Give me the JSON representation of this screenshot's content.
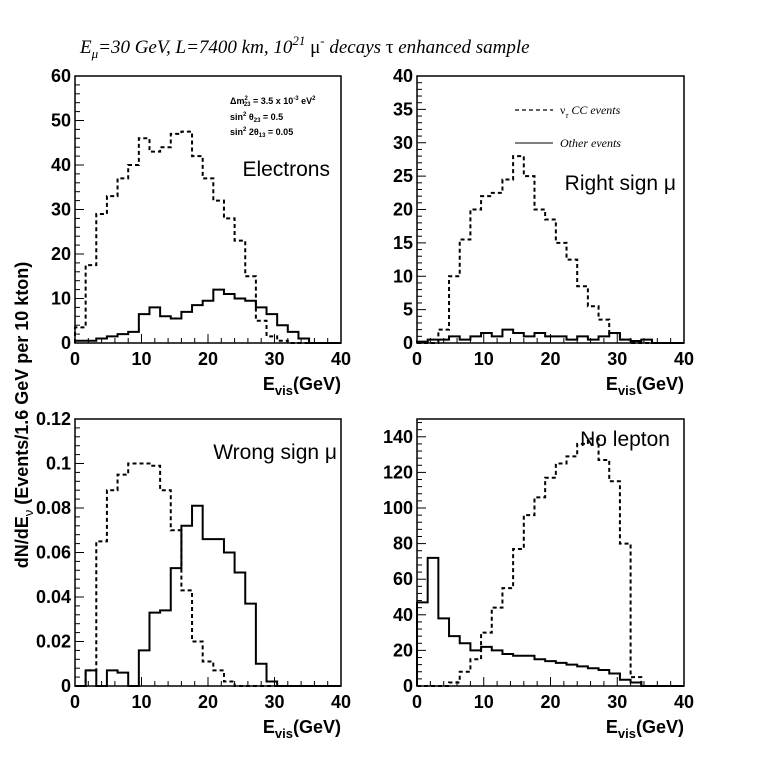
{
  "figure": {
    "title": {
      "e": "E",
      "mu_sub": "μ",
      "mid": "=30 GeV, L=7400 km, 10",
      "sup21": "21",
      "mu_glyph": " μ",
      "minus": "-",
      "decays": " decays ",
      "tau": "τ",
      "rest": " enhanced sample"
    },
    "ylabel": {
      "main": "dN/dE",
      "sub": "ν",
      "rest": " (Events/1.6 GeV per 10 kton)"
    },
    "legend": {
      "nu": "ν",
      "tau_sub": "τ",
      "cc": " CC events",
      "other": "Other events"
    },
    "params": {
      "dm": "Δm",
      "dm_sup": "2",
      "dm_sub": "23",
      "dm_rest": " = 3.5 x 10",
      "dm_exp": "-3",
      "dm_unit": " eV",
      "dm_unit_sup": "2",
      "sin1": "sin",
      "sin1_sup": "2",
      "sin1_theta": " θ",
      "sin1_sub": "23",
      "sin1_rest": " = 0.5",
      "sin2": "sin",
      "sin2_sup": "2",
      "sin2_theta": " 2θ",
      "sin2_sub": "13",
      "sin2_rest": " = 0.05"
    }
  },
  "chart_data": [
    {
      "type": "bar",
      "title": "Electrons",
      "xlabel_main": "E",
      "xlabel_sub": "vis",
      "xlabel_rest": "(GeV)",
      "xlim": [
        0,
        40
      ],
      "ylim": [
        0,
        60
      ],
      "xticks": [
        0,
        10,
        20,
        30,
        40
      ],
      "yticks": [
        0,
        10,
        20,
        30,
        40,
        50,
        60
      ],
      "bin_width": 1.6,
      "series": [
        {
          "name": "ντ CC events",
          "style": "dashed",
          "values": [
            3.5,
            17.5,
            29,
            33,
            37,
            40,
            46,
            43,
            44,
            47,
            47.5,
            42,
            37,
            32,
            28,
            23,
            15,
            5,
            1.5,
            0.5,
            0,
            0,
            0,
            0,
            0
          ]
        },
        {
          "name": "Other events",
          "style": "solid",
          "values": [
            0.5,
            0.5,
            1,
            1.5,
            2,
            2.5,
            6.5,
            8,
            6,
            5.5,
            7,
            8.5,
            9.5,
            12,
            11,
            10,
            9.5,
            8,
            6.5,
            4,
            2.5,
            1,
            0,
            0,
            0
          ]
        }
      ]
    },
    {
      "type": "bar",
      "title": "Right sign μ",
      "xlabel_main": "E",
      "xlabel_sub": "vis",
      "xlabel_rest": "(GeV)",
      "xlim": [
        0,
        40
      ],
      "ylim": [
        0,
        40
      ],
      "xticks": [
        0,
        10,
        20,
        30,
        40
      ],
      "yticks": [
        0,
        5,
        10,
        15,
        20,
        25,
        30,
        35,
        40
      ],
      "bin_width": 1.6,
      "series": [
        {
          "name": "ντ CC events",
          "style": "dashed",
          "values": [
            0,
            0,
            2,
            10,
            15.5,
            20,
            22,
            22.5,
            24.5,
            28,
            25,
            20,
            18.5,
            15,
            12.5,
            8.5,
            5.5,
            3.5,
            1.5,
            0.5,
            0,
            0,
            0,
            0,
            0
          ]
        },
        {
          "name": "Other events",
          "style": "solid",
          "values": [
            0.2,
            0.5,
            0.5,
            1,
            0.5,
            1,
            1.5,
            1,
            2,
            1.5,
            1,
            1.5,
            1,
            1,
            0.5,
            1,
            0.5,
            1,
            1.5,
            0.5,
            0.3,
            0.5,
            0,
            0,
            0
          ]
        }
      ]
    },
    {
      "type": "bar",
      "title": "Wrong sign μ",
      "xlabel_main": "E",
      "xlabel_sub": "vis",
      "xlabel_rest": "(GeV)",
      "xlim": [
        0,
        40
      ],
      "ylim": [
        0,
        0.12
      ],
      "xticks": [
        0,
        10,
        20,
        30,
        40
      ],
      "yticks": [
        0,
        0.02,
        0.04,
        0.06,
        0.08,
        0.1,
        0.12
      ],
      "bin_width": 1.6,
      "series": [
        {
          "name": "ντ CC events",
          "style": "dashed",
          "values": [
            0,
            0.007,
            0.065,
            0.088,
            0.095,
            0.1,
            0.1,
            0.099,
            0.088,
            0.07,
            0.043,
            0.02,
            0.011,
            0.007,
            0.002,
            0,
            0,
            0,
            0,
            0,
            0,
            0,
            0,
            0,
            0
          ]
        },
        {
          "name": "Other events",
          "style": "solid",
          "values": [
            0,
            0.007,
            0,
            0.007,
            0.006,
            0,
            0.016,
            0.033,
            0.034,
            0.053,
            0.072,
            0.081,
            0.066,
            0.066,
            0.06,
            0.051,
            0.037,
            0.01,
            0.002,
            0,
            0,
            0,
            0,
            0,
            0
          ]
        }
      ]
    },
    {
      "type": "bar",
      "title": "No lepton",
      "xlabel_main": "E",
      "xlabel_sub": "vis",
      "xlabel_rest": "(GeV)",
      "xlim": [
        0,
        40
      ],
      "ylim": [
        0,
        150
      ],
      "xticks": [
        0,
        10,
        20,
        30,
        40
      ],
      "yticks": [
        0,
        20,
        40,
        60,
        80,
        100,
        120,
        140
      ],
      "bin_width": 1.6,
      "series": [
        {
          "name": "ντ CC events",
          "style": "dashed",
          "values": [
            0,
            0,
            0,
            2,
            8,
            15,
            30,
            44,
            55,
            77,
            96,
            106,
            117,
            125,
            129,
            136,
            139,
            127,
            115,
            80,
            5,
            0,
            0,
            0,
            0
          ]
        },
        {
          "name": "Other events",
          "style": "solid",
          "values": [
            47,
            72,
            38,
            28,
            24,
            20,
            22,
            20,
            18,
            17,
            17,
            15,
            14,
            13,
            12,
            11,
            10,
            9,
            7,
            3.5,
            2,
            0,
            0,
            0,
            0
          ]
        }
      ]
    }
  ]
}
